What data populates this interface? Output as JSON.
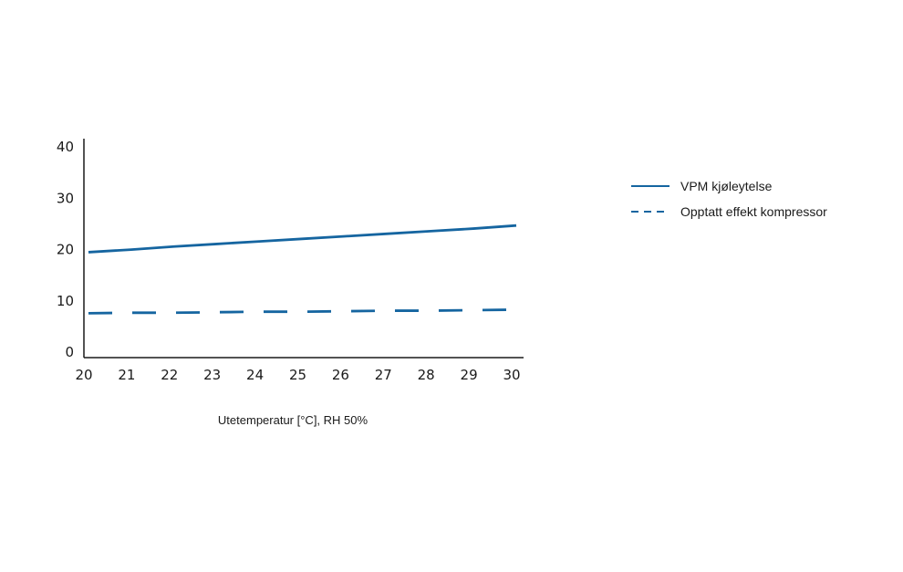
{
  "chart_data": {
    "type": "line",
    "title": "",
    "xlabel": "Utetemperatur [°C], RH 50%",
    "ylabel": "",
    "x": [
      20,
      21,
      22,
      23,
      24,
      25,
      26,
      27,
      28,
      29,
      30
    ],
    "xlim": [
      20,
      30
    ],
    "ylim": [
      0,
      40
    ],
    "x_ticks": [
      "20",
      "21",
      "22",
      "23",
      "24",
      "25",
      "26",
      "27",
      "28",
      "29",
      "30"
    ],
    "y_ticks": [
      "0",
      "10",
      "20",
      "30",
      "40"
    ],
    "grid": false,
    "legend_position": "right",
    "series": [
      {
        "name": "VPM kjøleytelse",
        "style": "solid",
        "color": "#1565a0",
        "values": [
          19.3,
          19.8,
          20.4,
          20.9,
          21.4,
          21.9,
          22.4,
          22.9,
          23.4,
          23.9,
          24.5
        ]
      },
      {
        "name": "Opptatt effekt kompressor",
        "style": "dashed",
        "color": "#1565a0",
        "values": [
          7.4,
          7.5,
          7.5,
          7.6,
          7.7,
          7.7,
          7.8,
          7.9,
          7.9,
          8.0,
          8.1
        ]
      }
    ]
  }
}
